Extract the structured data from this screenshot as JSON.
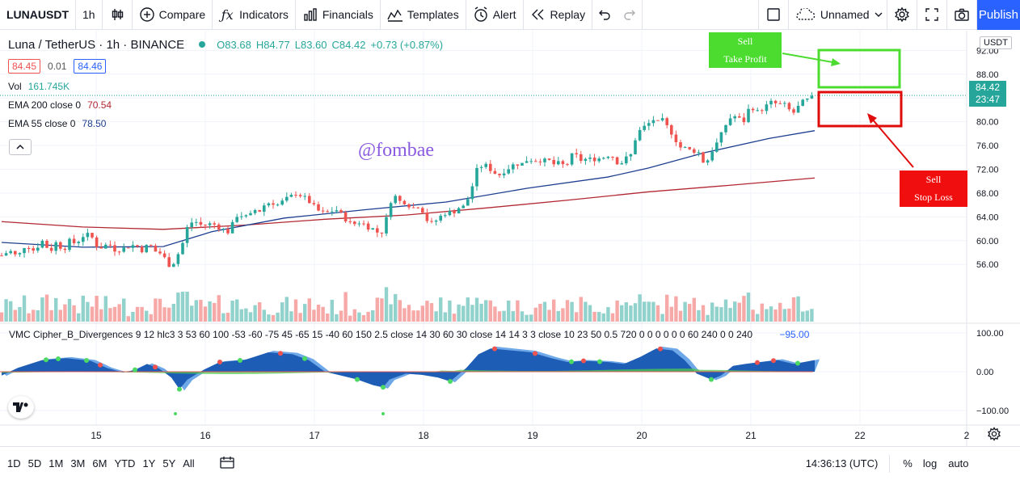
{
  "toolbar": {
    "symbol": "LUNAUSDT",
    "interval": "1h",
    "compare": "Compare",
    "indicators": "Indicators",
    "financials": "Financials",
    "templates": "Templates",
    "alert": "Alert",
    "replay": "Replay",
    "layout_name": "Unnamed",
    "publish": "Publish"
  },
  "legend": {
    "title": "Luna / TetherUS · 1h · BINANCE",
    "open": "O83.68",
    "high": "H84.77",
    "low": "L83.60",
    "close": "C84.42",
    "change": "+0.73 (+0.87%)",
    "bid": "84.45",
    "spread": "0.01",
    "ask": "84.46",
    "vol_label": "Vol",
    "vol_value": "161.745K",
    "ema200_label": "EMA 200 close 0",
    "ema200_value": "70.54",
    "ema55_label": "EMA 55 close 0",
    "ema55_value": "78.50"
  },
  "watermark": "@fombae",
  "indicator": {
    "label": "VMC Cipher_B_Divergences 9 12 hlc3 3 53 60 100 -53 -60 -75 45 -65 15 -40 60 150 2.5 close 14 30 60 30 close 14 14 3 3 close 10 23 50 0.5 720 0 0 0 0 0 0 60 240 0 0 240",
    "value": "−95.00"
  },
  "annotations": {
    "take_profit": "Sell\nTake Profit",
    "stop_loss": "Sell\nStop Loss"
  },
  "price_axis": {
    "currency": "USDT",
    "last_price": "84.42",
    "countdown": "23:47"
  },
  "bottom": {
    "ranges": [
      "1D",
      "5D",
      "1M",
      "3M",
      "6M",
      "YTD",
      "1Y",
      "5Y",
      "All"
    ],
    "time": "14:36:13 (UTC)",
    "percent": "%",
    "log": "log",
    "auto": "auto"
  },
  "colors": {
    "up": "#26a69a",
    "down": "#ef5350",
    "ema200": "#b22833",
    "ema55": "#1e3f8f",
    "accent": "#2962ff",
    "wave_dark": "#1e5db5",
    "wave_light": "#6fa8e8"
  },
  "chart_data": {
    "type": "candlestick",
    "x_ticks": [
      "15",
      "16",
      "17",
      "18",
      "19",
      "20",
      "21",
      "22",
      "2"
    ],
    "y_ticks": [
      "92.00",
      "88.00",
      "84.00",
      "80.00",
      "76.00",
      "72.00",
      "68.00",
      "64.00",
      "60.00",
      "56.00"
    ],
    "ylim": [
      51,
      93
    ],
    "indicator_ticks": [
      "100.00",
      "0.00",
      "−100.00"
    ],
    "indicator_ylim": [
      -125,
      125
    ],
    "close_path": [
      [
        0,
        57.5
      ],
      [
        10,
        58.3
      ],
      [
        20,
        57.2
      ],
      [
        30,
        59.5
      ],
      [
        40,
        58.3
      ],
      [
        50,
        60.0
      ],
      [
        60,
        58.2
      ],
      [
        68,
        59.8
      ],
      [
        76,
        58.4
      ],
      [
        84,
        59.9
      ],
      [
        92,
        59.5
      ],
      [
        100,
        60.8
      ],
      [
        110,
        61.0
      ],
      [
        117,
        59.2
      ],
      [
        125,
        58.8
      ],
      [
        132,
        59.6
      ],
      [
        140,
        58.5
      ],
      [
        150,
        58.6
      ],
      [
        160,
        59.3
      ],
      [
        168,
        59.0
      ],
      [
        175,
        58.3
      ],
      [
        182,
        59.5
      ],
      [
        190,
        58.2
      ],
      [
        198,
        57.8
      ],
      [
        204,
        56.5
      ],
      [
        210,
        55.5
      ],
      [
        216,
        57.3
      ],
      [
        222,
        58.5
      ],
      [
        227,
        61.2
      ],
      [
        232,
        63.0
      ],
      [
        240,
        63.2
      ],
      [
        248,
        62.5
      ],
      [
        256,
        62.8
      ],
      [
        264,
        62.7
      ],
      [
        272,
        62.0
      ],
      [
        280,
        61.5
      ],
      [
        286,
        62.8
      ],
      [
        292,
        64.5
      ],
      [
        298,
        64.2
      ],
      [
        306,
        63.8
      ],
      [
        312,
        65.2
      ],
      [
        320,
        65.0
      ],
      [
        326,
        66.2
      ],
      [
        334,
        66.5
      ],
      [
        342,
        66.0
      ],
      [
        350,
        66.8
      ],
      [
        358,
        67.4
      ],
      [
        366,
        68.2
      ],
      [
        372,
        67.3
      ],
      [
        378,
        67.0
      ],
      [
        384,
        66.0
      ],
      [
        392,
        65.0
      ],
      [
        400,
        64.5
      ],
      [
        408,
        65.0
      ],
      [
        416,
        65.2
      ],
      [
        422,
        64.0
      ],
      [
        428,
        63.4
      ],
      [
        434,
        62.5
      ],
      [
        440,
        63.2
      ],
      [
        446,
        63.0
      ],
      [
        452,
        62.4
      ],
      [
        458,
        62.1
      ],
      [
        464,
        61.5
      ],
      [
        469,
        61.0
      ],
      [
        474,
        62.8
      ],
      [
        478,
        64.5
      ],
      [
        482,
        67.0
      ],
      [
        486,
        67.8
      ],
      [
        490,
        66.5
      ],
      [
        496,
        66.7
      ],
      [
        502,
        66.3
      ],
      [
        508,
        65.4
      ],
      [
        514,
        66.0
      ],
      [
        520,
        65.3
      ],
      [
        525,
        63.8
      ],
      [
        530,
        62.6
      ],
      [
        535,
        63.2
      ],
      [
        540,
        63.6
      ],
      [
        546,
        64.5
      ],
      [
        552,
        64.8
      ],
      [
        558,
        64.6
      ],
      [
        564,
        65.6
      ],
      [
        570,
        65.4
      ],
      [
        576,
        66.8
      ],
      [
        580,
        68.0
      ],
      [
        584,
        70.0
      ],
      [
        588,
        71.8
      ],
      [
        592,
        72.5
      ],
      [
        598,
        72.7
      ],
      [
        604,
        72.1
      ],
      [
        610,
        71.4
      ],
      [
        616,
        71.1
      ],
      [
        622,
        71.8
      ],
      [
        628,
        72.3
      ],
      [
        634,
        72.8
      ],
      [
        640,
        73.0
      ],
      [
        646,
        72.9
      ],
      [
        652,
        74.0
      ],
      [
        658,
        73.3
      ],
      [
        664,
        73.8
      ],
      [
        670,
        73.3
      ],
      [
        676,
        73.6
      ],
      [
        682,
        72.8
      ],
      [
        688,
        73.0
      ],
      [
        694,
        72.7
      ],
      [
        700,
        72.9
      ],
      [
        706,
        74.4
      ],
      [
        712,
        74.2
      ],
      [
        718,
        73.4
      ],
      [
        724,
        73.8
      ],
      [
        730,
        73.6
      ],
      [
        736,
        73.9
      ],
      [
        742,
        73.8
      ],
      [
        748,
        74.3
      ],
      [
        754,
        74.6
      ],
      [
        760,
        73.3
      ],
      [
        766,
        73.0
      ],
      [
        772,
        73.8
      ],
      [
        778,
        74.2
      ],
      [
        783,
        76.8
      ],
      [
        788,
        78.3
      ],
      [
        794,
        79.0
      ],
      [
        800,
        79.6
      ],
      [
        806,
        80.4
      ],
      [
        812,
        79.8
      ],
      [
        818,
        80.2
      ],
      [
        824,
        79.0
      ],
      [
        830,
        78.0
      ],
      [
        836,
        76.5
      ],
      [
        842,
        75.3
      ],
      [
        848,
        75.7
      ],
      [
        854,
        74.8
      ],
      [
        860,
        75.5
      ],
      [
        866,
        73.8
      ],
      [
        871,
        72.6
      ],
      [
        876,
        74.5
      ],
      [
        882,
        75.8
      ],
      [
        888,
        77.0
      ],
      [
        894,
        79.0
      ],
      [
        900,
        80.5
      ],
      [
        906,
        81.0
      ],
      [
        912,
        80.5
      ],
      [
        918,
        80.0
      ],
      [
        924,
        82.0
      ],
      [
        930,
        82.4
      ],
      [
        936,
        81.5
      ],
      [
        942,
        82.3
      ],
      [
        948,
        82.8
      ],
      [
        954,
        83.4
      ],
      [
        960,
        82.8
      ],
      [
        966,
        83.0
      ],
      [
        972,
        82.5
      ],
      [
        978,
        81.2
      ],
      [
        984,
        82.2
      ],
      [
        990,
        83.2
      ],
      [
        996,
        83.6
      ],
      [
        1002,
        83.9
      ],
      [
        1006,
        84.42
      ]
    ],
    "ema200_path": [
      [
        0,
        63.2
      ],
      [
        100,
        62.3
      ],
      [
        200,
        61.9
      ],
      [
        300,
        62.6
      ],
      [
        400,
        63.6
      ],
      [
        500,
        64.3
      ],
      [
        600,
        65.5
      ],
      [
        700,
        66.8
      ],
      [
        800,
        68.2
      ],
      [
        900,
        69.3
      ],
      [
        1006,
        70.54
      ]
    ],
    "ema55_path": [
      [
        0,
        59.7
      ],
      [
        100,
        58.9
      ],
      [
        200,
        59.0
      ],
      [
        260,
        61.5
      ],
      [
        350,
        63.8
      ],
      [
        450,
        65.2
      ],
      [
        550,
        66.5
      ],
      [
        650,
        68.8
      ],
      [
        750,
        70.7
      ],
      [
        800,
        72.2
      ],
      [
        870,
        74.8
      ],
      [
        950,
        77.2
      ],
      [
        1006,
        78.5
      ]
    ],
    "wave_path": [
      [
        0,
        -10
      ],
      [
        20,
        10
      ],
      [
        50,
        30
      ],
      [
        80,
        35
      ],
      [
        110,
        28
      ],
      [
        130,
        10
      ],
      [
        150,
        -2
      ],
      [
        165,
        5
      ],
      [
        180,
        20
      ],
      [
        195,
        8
      ],
      [
        210,
        -15
      ],
      [
        220,
        -45
      ],
      [
        230,
        -20
      ],
      [
        250,
        5
      ],
      [
        270,
        25
      ],
      [
        300,
        30
      ],
      [
        330,
        50
      ],
      [
        360,
        45
      ],
      [
        380,
        30
      ],
      [
        400,
        0
      ],
      [
        420,
        -10
      ],
      [
        440,
        -20
      ],
      [
        460,
        -35
      ],
      [
        472,
        -40
      ],
      [
        480,
        -20
      ],
      [
        500,
        -5
      ],
      [
        520,
        -8
      ],
      [
        540,
        -15
      ],
      [
        555,
        -25
      ],
      [
        575,
        10
      ],
      [
        590,
        45
      ],
      [
        605,
        60
      ],
      [
        630,
        55
      ],
      [
        655,
        50
      ],
      [
        680,
        35
      ],
      [
        700,
        25
      ],
      [
        720,
        28
      ],
      [
        750,
        25
      ],
      [
        770,
        20
      ],
      [
        790,
        38
      ],
      [
        810,
        60
      ],
      [
        830,
        55
      ],
      [
        845,
        30
      ],
      [
        860,
        -5
      ],
      [
        878,
        -20
      ],
      [
        890,
        -10
      ],
      [
        905,
        15
      ],
      [
        920,
        20
      ],
      [
        940,
        25
      ],
      [
        960,
        30
      ],
      [
        980,
        20
      ],
      [
        1006,
        30
      ]
    ]
  }
}
